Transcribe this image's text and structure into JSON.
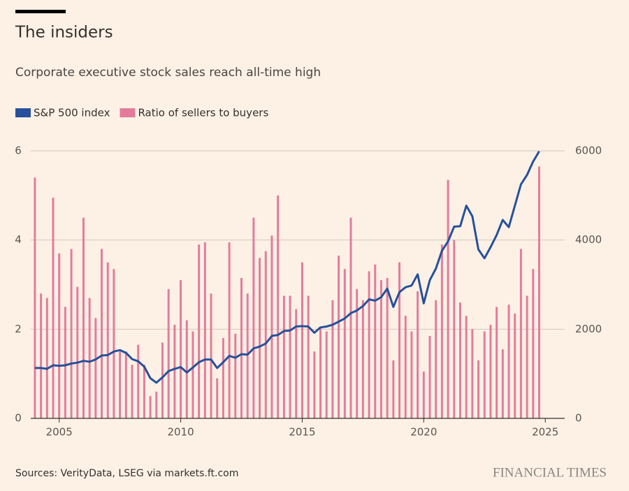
{
  "chart_data": {
    "type": "bar",
    "title": "The insiders",
    "subtitle": "Corporate executive stock sales reach all-time high",
    "source": "Sources: VerityData, LSEG via markets.ft.com",
    "brand": "FINANCIAL TIMES",
    "x": [
      2004,
      2004.25,
      2004.5,
      2004.75,
      2005,
      2005.25,
      2005.5,
      2005.75,
      2006,
      2006.25,
      2006.5,
      2006.75,
      2007,
      2007.25,
      2007.5,
      2007.75,
      2008,
      2008.25,
      2008.5,
      2008.75,
      2009,
      2009.25,
      2009.5,
      2009.75,
      2010,
      2010.25,
      2010.5,
      2010.75,
      2011,
      2011.25,
      2011.5,
      2011.75,
      2012,
      2012.25,
      2012.5,
      2012.75,
      2013,
      2013.25,
      2013.5,
      2013.75,
      2014,
      2014.25,
      2014.5,
      2014.75,
      2015,
      2015.25,
      2015.5,
      2015.75,
      2016,
      2016.25,
      2016.5,
      2016.75,
      2017,
      2017.25,
      2017.5,
      2017.75,
      2018,
      2018.25,
      2018.5,
      2018.75,
      2019,
      2019.25,
      2019.5,
      2019.75,
      2020,
      2020.25,
      2020.5,
      2020.75,
      2021,
      2021.25,
      2021.5,
      2021.75,
      2022,
      2022.25,
      2022.5,
      2022.75,
      2023,
      2023.25,
      2023.5,
      2023.75,
      2024,
      2024.25,
      2024.5,
      2024.75
    ],
    "series": [
      {
        "name": "S&P 500 index",
        "type": "line",
        "axis": "y2",
        "color": "#26519a",
        "values": [
          1130,
          1130,
          1110,
          1190,
          1180,
          1190,
          1230,
          1250,
          1290,
          1270,
          1320,
          1410,
          1420,
          1500,
          1530,
          1470,
          1330,
          1280,
          1160,
          900,
          800,
          920,
          1060,
          1110,
          1150,
          1030,
          1140,
          1260,
          1320,
          1320,
          1130,
          1260,
          1400,
          1360,
          1440,
          1430,
          1570,
          1610,
          1680,
          1850,
          1870,
          1960,
          1970,
          2060,
          2070,
          2060,
          1920,
          2040,
          2060,
          2100,
          2170,
          2240,
          2360,
          2420,
          2520,
          2670,
          2640,
          2720,
          2910,
          2500,
          2830,
          2940,
          2980,
          3230,
          2580,
          3100,
          3360,
          3760,
          3970,
          4300,
          4310,
          4770,
          4530,
          3790,
          3590,
          3840,
          4110,
          4450,
          4290,
          4770,
          5250,
          5460,
          5760,
          5990
        ]
      },
      {
        "name": "Ratio of sellers to buyers",
        "type": "bar",
        "color": "#e37c9c",
        "values": [
          5.4,
          2.8,
          2.7,
          4.95,
          3.7,
          2.5,
          3.8,
          2.95,
          4.5,
          2.7,
          2.25,
          3.8,
          3.5,
          3.35,
          1.5,
          1.5,
          1.2,
          1.65,
          1.2,
          0.5,
          0.6,
          1.7,
          2.9,
          2.1,
          3.1,
          2.2,
          1.95,
          3.9,
          3.95,
          2.8,
          0.9,
          1.8,
          3.95,
          1.9,
          3.15,
          2.8,
          4.5,
          3.6,
          3.75,
          4.1,
          5.0,
          2.75,
          2.75,
          2.45,
          3.5,
          2.75,
          1.5,
          2.05,
          1.95,
          2.65,
          3.65,
          3.35,
          4.5,
          2.9,
          2.65,
          3.3,
          3.45,
          3.1,
          3.15,
          1.3,
          3.5,
          2.3,
          1.95,
          2.85,
          1.05,
          1.85,
          2.65,
          3.9,
          5.35,
          4.0,
          2.6,
          2.3,
          2.0,
          1.3,
          1.95,
          2.1,
          2.5,
          1.55,
          2.55,
          2.35,
          3.8,
          2.75,
          3.35,
          5.65
        ]
      }
    ],
    "xlim": [
      2003.83,
      2025.8
    ],
    "xticks": [
      2005,
      2010,
      2015,
      2020,
      2025
    ],
    "ylim": [
      0,
      6
    ],
    "yticks": [
      0,
      2,
      4,
      6
    ],
    "y2lim": [
      0,
      6000
    ],
    "y2ticks": [
      0,
      2000,
      4000,
      6000
    ],
    "grid": true
  }
}
